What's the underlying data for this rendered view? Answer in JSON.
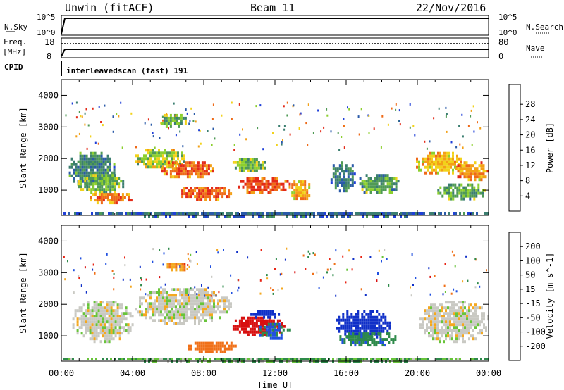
{
  "header": {
    "radar": "Unwin (fitACF)",
    "beam": "Beam 11",
    "date": "22/Nov/2016"
  },
  "top_panels": {
    "nsky_label": "N.Sky",
    "nsky_ticks": [
      "10^5",
      "10^0"
    ],
    "nsearch_label": "N.Search",
    "freq_label": "Freq.",
    "freq_unit": "[MHz]",
    "freq_ticks": [
      "18",
      "8"
    ],
    "nave_label": "Nave",
    "nave_ticks": [
      "80",
      "0"
    ],
    "cpid_label": "CPID",
    "cpid_text": "interleavedscan (fast) 191"
  },
  "colors": {
    "power": [
      "#1f3fd8",
      "#2a5aa8",
      "#3b7e70",
      "#4f9a55",
      "#8ccf2e",
      "#f2d21a",
      "#f3a016",
      "#ee6a18",
      "#e32a18"
    ],
    "velocity": [
      "#1030c8",
      "#2050e0",
      "#2e8a4a",
      "#68c43a",
      "#c9c9c3",
      "#f4a820",
      "#f07018",
      "#e82414",
      "#d81010"
    ]
  },
  "chart_data": [
    {
      "type": "heatmap",
      "ylabel": "Slant Range [km]",
      "xlabel": "Time UT",
      "x_ticks": [
        "00:00",
        "04:00",
        "08:00",
        "12:00",
        "16:00",
        "20:00",
        "00:00"
      ],
      "y_ticks": [
        "1000",
        "2000",
        "3000",
        "4000"
      ],
      "x_range_hours": [
        0,
        24
      ],
      "y_range_km": [
        200,
        4500
      ],
      "colorbar": {
        "label": "Power [dB]",
        "ticks": [
          "4",
          "8",
          "12",
          "16",
          "20",
          "24",
          "28"
        ],
        "range": [
          0,
          30
        ]
      },
      "blobs": [
        {
          "t0": 0.3,
          "t1": 3.0,
          "r0": 1100,
          "r1": 2300,
          "v": 9
        },
        {
          "t0": 0.8,
          "t1": 3.5,
          "r0": 900,
          "r1": 1600,
          "v": 13
        },
        {
          "t0": 1.5,
          "t1": 4.0,
          "r0": 600,
          "r1": 1000,
          "v": 24
        },
        {
          "t0": 4.0,
          "t1": 7.0,
          "r0": 1700,
          "r1": 2400,
          "v": 16
        },
        {
          "t0": 5.5,
          "t1": 8.5,
          "r0": 1400,
          "r1": 2000,
          "v": 25
        },
        {
          "t0": 6.5,
          "t1": 9.5,
          "r0": 700,
          "r1": 1200,
          "v": 26
        },
        {
          "t0": 9.5,
          "t1": 11.5,
          "r0": 1600,
          "r1": 2100,
          "v": 14
        },
        {
          "t0": 9.8,
          "t1": 12.8,
          "r0": 900,
          "r1": 1500,
          "v": 27
        },
        {
          "t0": 5.5,
          "t1": 7.0,
          "r0": 3000,
          "r1": 3500,
          "v": 12
        },
        {
          "t0": 12.8,
          "t1": 14.0,
          "r0": 700,
          "r1": 1400,
          "v": 20
        },
        {
          "t0": 15.0,
          "t1": 16.5,
          "r0": 1000,
          "r1": 2000,
          "v": 8
        },
        {
          "t0": 16.5,
          "t1": 19.0,
          "r0": 900,
          "r1": 1600,
          "v": 11
        },
        {
          "t0": 19.8,
          "t1": 22.5,
          "r0": 1500,
          "r1": 2300,
          "v": 20
        },
        {
          "t0": 21.0,
          "t1": 23.8,
          "r0": 700,
          "r1": 1300,
          "v": 12
        },
        {
          "t0": 22.0,
          "t1": 24.0,
          "r0": 1300,
          "r1": 2000,
          "v": 22
        },
        {
          "t0": 0.0,
          "t1": 24.0,
          "r0": 200,
          "r1": 400,
          "v": 6
        }
      ]
    },
    {
      "type": "heatmap",
      "ylabel": "Slant Range [km]",
      "xlabel": "Time UT",
      "x_ticks": [
        "00:00",
        "04:00",
        "08:00",
        "12:00",
        "16:00",
        "20:00",
        "00:00"
      ],
      "y_ticks": [
        "1000",
        "2000",
        "3000",
        "4000"
      ],
      "x_range_hours": [
        0,
        24
      ],
      "y_range_km": [
        200,
        4500
      ],
      "colorbar": {
        "label": "Velocity [m s^-1]",
        "ticks": [
          "200",
          "100",
          "50",
          "15",
          "-15",
          "-50",
          "-100",
          "-200"
        ],
        "range": [
          -250,
          250
        ]
      },
      "blobs": [
        {
          "t0": 0.5,
          "t1": 4.0,
          "r0": 800,
          "r1": 2200,
          "v": 0
        },
        {
          "t0": 4.0,
          "t1": 9.5,
          "r0": 1400,
          "r1": 2600,
          "v": 0
        },
        {
          "t0": 7.0,
          "t1": 9.8,
          "r0": 500,
          "r1": 900,
          "v": -70
        },
        {
          "t0": 9.5,
          "t1": 12.5,
          "r0": 1000,
          "r1": 1700,
          "v": -200
        },
        {
          "t0": 11.0,
          "t1": 12.8,
          "r0": 900,
          "r1": 1500,
          "v": 80
        },
        {
          "t0": 10.5,
          "t1": 12.3,
          "r0": 1600,
          "r1": 1900,
          "v": 200
        },
        {
          "t0": 15.3,
          "t1": 18.5,
          "r0": 900,
          "r1": 1900,
          "v": 180
        },
        {
          "t0": 15.5,
          "t1": 18.8,
          "r0": 700,
          "r1": 1200,
          "v": 60
        },
        {
          "t0": 20.0,
          "t1": 24.0,
          "r0": 800,
          "r1": 2200,
          "v": 0
        },
        {
          "t0": 5.8,
          "t1": 7.2,
          "r0": 3100,
          "r1": 3400,
          "v": -40
        },
        {
          "t0": 0.0,
          "t1": 24.0,
          "r0": 200,
          "r1": 400,
          "v": 30
        }
      ]
    }
  ]
}
